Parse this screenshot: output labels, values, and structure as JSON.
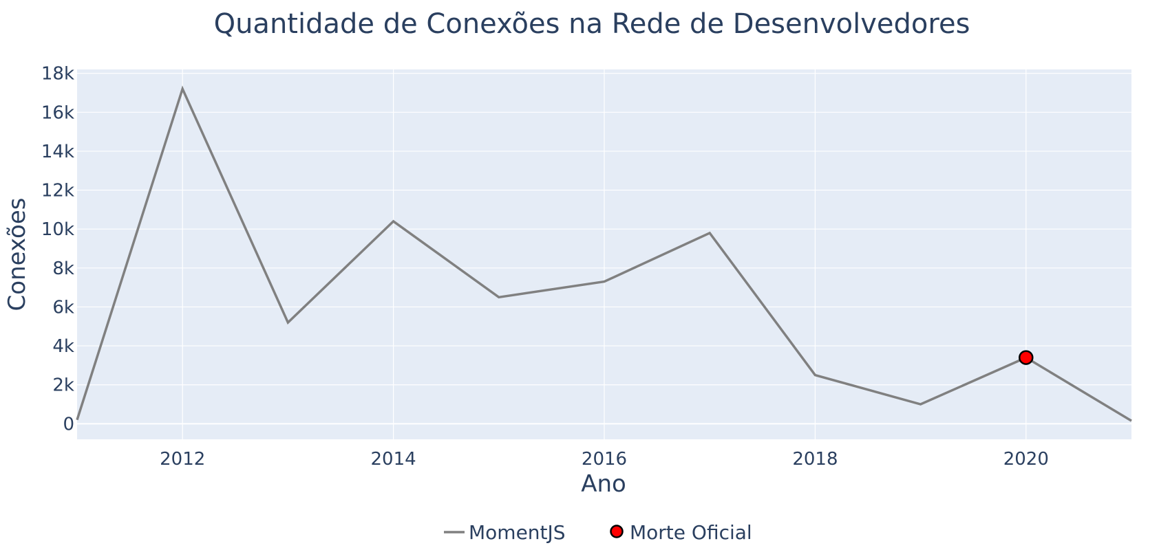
{
  "chart_data": {
    "type": "line",
    "title": "Quantidade de Conexões na Rede de Desenvolvedores",
    "xlabel": "Ano",
    "ylabel": "Conexões",
    "xlim": [
      2011,
      2021
    ],
    "ylim": [
      -800,
      18200
    ],
    "x_ticks": [
      2012,
      2014,
      2016,
      2018,
      2020
    ],
    "x_tick_labels": [
      "2012",
      "2014",
      "2016",
      "2018",
      "2020"
    ],
    "y_ticks": [
      0,
      2000,
      4000,
      6000,
      8000,
      10000,
      12000,
      14000,
      16000,
      18000
    ],
    "y_tick_labels": [
      "0",
      "2k",
      "4k",
      "6k",
      "8k",
      "10k",
      "12k",
      "14k",
      "16k",
      "18k"
    ],
    "grid": true,
    "legend_position": "bottom-center",
    "series": [
      {
        "name": "MomentJS",
        "type": "line",
        "color": "#808080",
        "x": [
          2011,
          2012,
          2013,
          2014,
          2015,
          2016,
          2017,
          2018,
          2019,
          2020,
          2021
        ],
        "y": [
          200,
          17200,
          5200,
          10400,
          6500,
          7300,
          9800,
          2500,
          1000,
          3400,
          150
        ]
      },
      {
        "name": "Morte Oficial",
        "type": "marker",
        "color": "#ff0000",
        "outline": "#000000",
        "x": [
          2020
        ],
        "y": [
          3400
        ]
      }
    ]
  },
  "colors": {
    "plot_background": "#e5ecf6",
    "grid": "#ffffff",
    "text": "#2a3f5f"
  }
}
